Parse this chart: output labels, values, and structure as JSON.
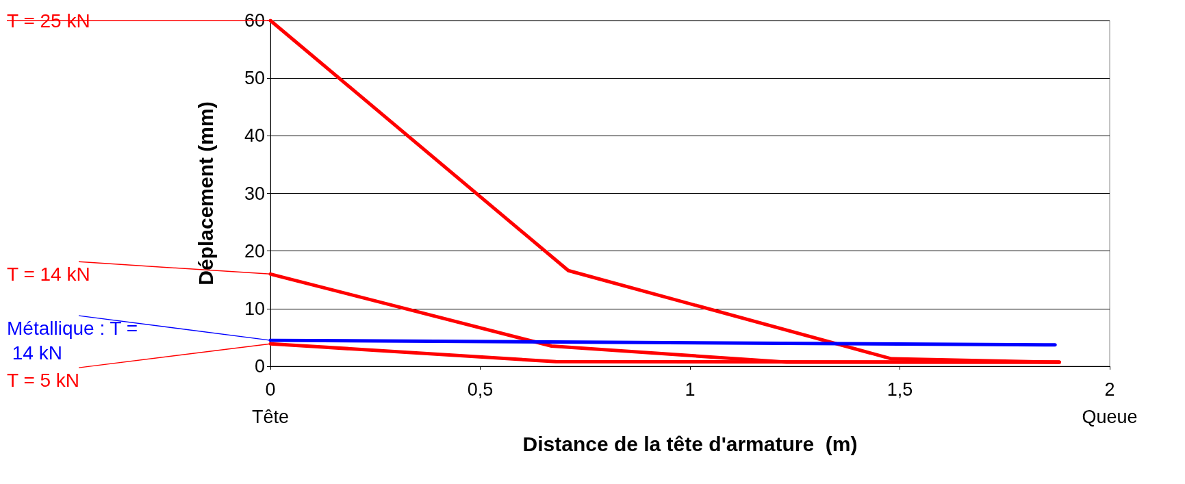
{
  "chart_data": {
    "type": "line",
    "xlabel": "Distance de la tête d'armature  (m)",
    "ylabel": "Déplacement (mm)",
    "xlim": [
      0,
      2
    ],
    "xticks": [
      {
        "value": 0,
        "label": "0\nTête"
      },
      {
        "value": 0.5,
        "label": "0,5"
      },
      1,
      {
        "value": 1.5,
        "label": "1,5"
      },
      {
        "value": 2,
        "label": "2\nQueue"
      }
    ],
    "ylim": [
      0,
      60
    ],
    "yticks": [
      0,
      10,
      20,
      30,
      40,
      50,
      60
    ],
    "grid": "y",
    "legend": false,
    "marker": "none",
    "line_style": "solid",
    "series": [
      {
        "name": "T = 25 kN",
        "color": "#ff0000",
        "x": [
          0,
          0.71,
          1.48,
          1.88
        ],
        "values": [
          60,
          16.6,
          1.3,
          0.7
        ]
      },
      {
        "name": "T = 14 kN",
        "color": "#ff0000",
        "x": [
          0,
          0.67,
          1.23,
          1.88
        ],
        "values": [
          16,
          3.5,
          0.7,
          0.7
        ]
      },
      {
        "name": "Métallique : T = 14 kN",
        "color": "#0000ff",
        "x": [
          0,
          1.87
        ],
        "values": [
          4.5,
          3.7
        ]
      },
      {
        "name": "T = 5 kN",
        "color": "#ff0000",
        "x": [
          0,
          0.68,
          1.88
        ],
        "values": [
          3.9,
          0.8,
          0.7
        ]
      }
    ]
  }
}
